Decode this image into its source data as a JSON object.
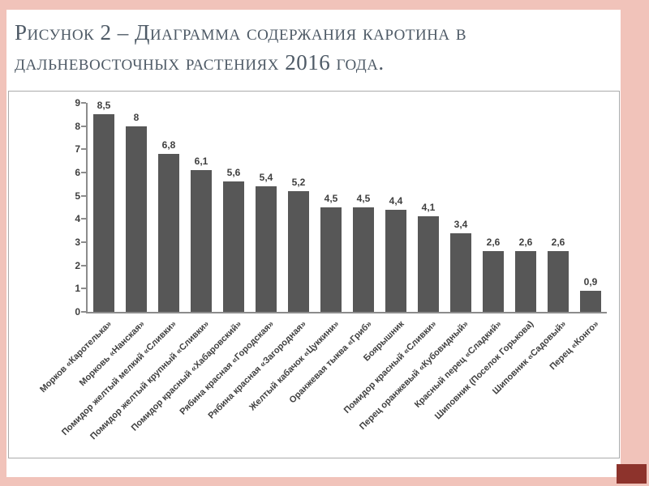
{
  "slide": {
    "title": "Рисунок 2 – Диаграмма содержания каротина в дальневосточных растениях 2016 года.",
    "colors": {
      "frame": "#f1c3ba",
      "corner_accent": "#8d332c",
      "bar": "#575757",
      "title_text": "#4e5a66",
      "axis": "#8c8c8c",
      "label_text": "#3f3f3f"
    }
  },
  "chart_data": {
    "type": "bar",
    "categories": [
      "Морков «Каротелька»",
      "Морковь «Нанская»",
      "Помидор желтый мелкий «Сливки»",
      "Помидор желтый крупный «Сливки»",
      "Помидор красный «Хабаровский»",
      "Рябина красная «Городская»",
      "Рябина красная «Загородная»",
      "Желтый кабачок «Цуккини»",
      "Оранжевая тыква «Гриб»",
      "Боярышник",
      "Помидор красный «Сливки»",
      "Перец оранжевый «Кубовидный»",
      "Красный перец «Сладкий»",
      "Шиповник (Поселок Горькова)",
      "Шиповник «Садовый»",
      "Перец «Конго»"
    ],
    "values": [
      8.5,
      8,
      6.8,
      6.1,
      5.6,
      5.4,
      5.2,
      4.5,
      4.5,
      4.4,
      4.1,
      3.4,
      2.6,
      2.6,
      2.6,
      0.9
    ],
    "value_labels": [
      "8,5",
      "8",
      "6,8",
      "6,1",
      "5,6",
      "5,4",
      "5,2",
      "4,5",
      "4,5",
      "4,4",
      "4,1",
      "3,4",
      "2,6",
      "2,6",
      "2,6",
      "0,9"
    ],
    "ylim": [
      0,
      9
    ],
    "yticks": [
      0,
      1,
      2,
      3,
      4,
      5,
      6,
      7,
      8,
      9
    ],
    "grid": false,
    "legend": false
  }
}
